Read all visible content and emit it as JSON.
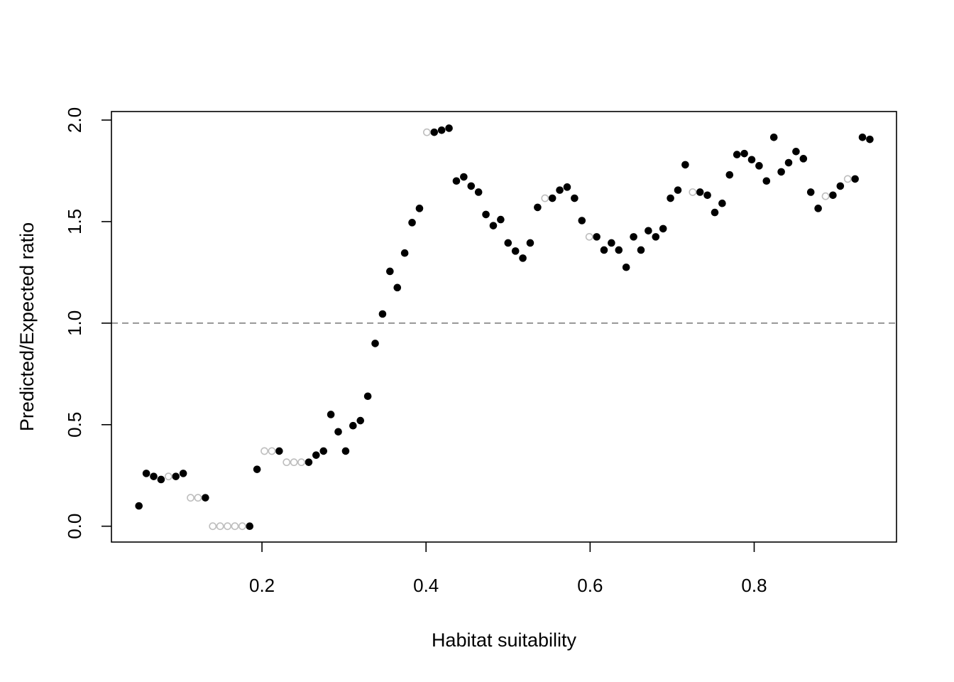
{
  "chart_data": {
    "type": "scatter",
    "title": "",
    "xlabel": "Habitat suitability",
    "ylabel": "Predicted/Expected ratio",
    "xlim": [
      0.0165,
      0.9735
    ],
    "ylim": [
      -0.078,
      2.042
    ],
    "x_ticks": [
      0.2,
      0.4,
      0.6,
      0.8
    ],
    "x_tick_labels": [
      "0.2",
      "0.4",
      "0.6",
      "0.8"
    ],
    "y_ticks": [
      0.0,
      0.5,
      1.0,
      1.5,
      2.0
    ],
    "y_tick_labels": [
      "0.0",
      "0.5",
      "1.0",
      "1.5",
      "2.0"
    ],
    "grid": false,
    "reference_line": {
      "y": 1.0,
      "style": "dashed",
      "color": "#808080"
    },
    "series": [
      {
        "marker": "filled",
        "color": "#000000",
        "points": [
          [
            0.05,
            0.1
          ],
          [
            0.059,
            0.26
          ],
          [
            0.068,
            0.245
          ],
          [
            0.077,
            0.23
          ],
          [
            0.095,
            0.245
          ],
          [
            0.104,
            0.26
          ],
          [
            0.131,
            0.14
          ],
          [
            0.185,
            0.0
          ],
          [
            0.194,
            0.28
          ],
          [
            0.221,
            0.37
          ],
          [
            0.257,
            0.315
          ],
          [
            0.266,
            0.35
          ],
          [
            0.275,
            0.37
          ],
          [
            0.284,
            0.55
          ],
          [
            0.293,
            0.465
          ],
          [
            0.302,
            0.37
          ],
          [
            0.311,
            0.495
          ],
          [
            0.32,
            0.52
          ],
          [
            0.329,
            0.64
          ],
          [
            0.338,
            0.9
          ],
          [
            0.347,
            1.045
          ],
          [
            0.356,
            1.255
          ],
          [
            0.365,
            1.175
          ],
          [
            0.374,
            1.345
          ],
          [
            0.383,
            1.495
          ],
          [
            0.392,
            1.565
          ],
          [
            0.41,
            1.94
          ],
          [
            0.419,
            1.95
          ],
          [
            0.428,
            1.96
          ],
          [
            0.437,
            1.7
          ],
          [
            0.446,
            1.72
          ],
          [
            0.455,
            1.675
          ],
          [
            0.464,
            1.645
          ],
          [
            0.473,
            1.535
          ],
          [
            0.482,
            1.48
          ],
          [
            0.491,
            1.51
          ],
          [
            0.5,
            1.395
          ],
          [
            0.509,
            1.355
          ],
          [
            0.518,
            1.32
          ],
          [
            0.527,
            1.395
          ],
          [
            0.536,
            1.57
          ],
          [
            0.554,
            1.615
          ],
          [
            0.563,
            1.655
          ],
          [
            0.572,
            1.67
          ],
          [
            0.581,
            1.615
          ],
          [
            0.59,
            1.505
          ],
          [
            0.608,
            1.425
          ],
          [
            0.617,
            1.36
          ],
          [
            0.626,
            1.395
          ],
          [
            0.635,
            1.36
          ],
          [
            0.644,
            1.275
          ],
          [
            0.653,
            1.425
          ],
          [
            0.662,
            1.36
          ],
          [
            0.671,
            1.455
          ],
          [
            0.68,
            1.425
          ],
          [
            0.689,
            1.465
          ],
          [
            0.698,
            1.615
          ],
          [
            0.707,
            1.655
          ],
          [
            0.716,
            1.78
          ],
          [
            0.734,
            1.645
          ],
          [
            0.743,
            1.63
          ],
          [
            0.752,
            1.545
          ],
          [
            0.761,
            1.59
          ],
          [
            0.77,
            1.73
          ],
          [
            0.779,
            1.83
          ],
          [
            0.788,
            1.835
          ],
          [
            0.797,
            1.805
          ],
          [
            0.806,
            1.775
          ],
          [
            0.815,
            1.7
          ],
          [
            0.824,
            1.915
          ],
          [
            0.833,
            1.745
          ],
          [
            0.842,
            1.79
          ],
          [
            0.851,
            1.845
          ],
          [
            0.86,
            1.81
          ],
          [
            0.869,
            1.645
          ],
          [
            0.878,
            1.565
          ],
          [
            0.896,
            1.63
          ],
          [
            0.905,
            1.675
          ],
          [
            0.923,
            1.71
          ],
          [
            0.932,
            1.915
          ],
          [
            0.941,
            1.905
          ]
        ]
      },
      {
        "marker": "open",
        "color": "#bebebe",
        "points": [
          [
            0.086,
            0.245
          ],
          [
            0.113,
            0.14
          ],
          [
            0.122,
            0.14
          ],
          [
            0.14,
            0.0
          ],
          [
            0.149,
            0.0
          ],
          [
            0.158,
            0.0
          ],
          [
            0.167,
            0.0
          ],
          [
            0.176,
            0.0
          ],
          [
            0.203,
            0.37
          ],
          [
            0.212,
            0.37
          ],
          [
            0.23,
            0.315
          ],
          [
            0.239,
            0.315
          ],
          [
            0.248,
            0.315
          ],
          [
            0.401,
            1.94
          ],
          [
            0.545,
            1.615
          ],
          [
            0.599,
            1.425
          ],
          [
            0.725,
            1.645
          ],
          [
            0.887,
            1.625
          ],
          [
            0.914,
            1.71
          ]
        ]
      }
    ]
  }
}
